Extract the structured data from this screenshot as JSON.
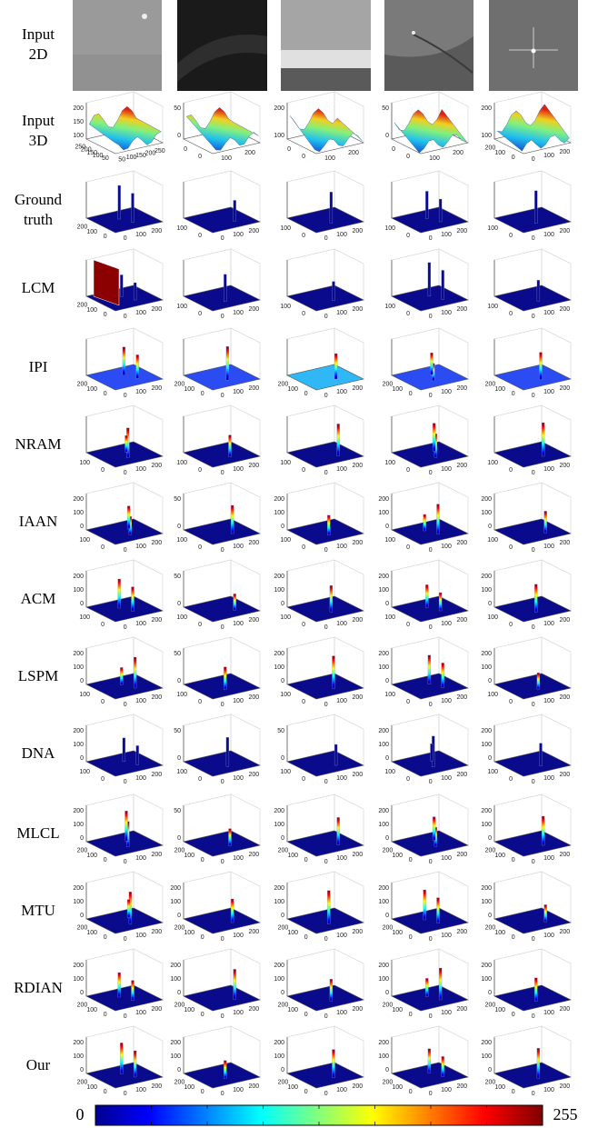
{
  "rows": [
    {
      "label": [
        "Input",
        "2D"
      ]
    },
    {
      "label": [
        "Input",
        "3D"
      ],
      "panels": [
        {
          "z": [
            "100",
            "150",
            "200"
          ],
          "f": [
            "250",
            "200",
            "150",
            "100",
            "50",
            "50",
            "100",
            "150",
            "200",
            "250"
          ]
        },
        {
          "z": [
            "0",
            "50"
          ],
          "f": [
            "0",
            "0",
            "100",
            "200"
          ]
        },
        {
          "z": [
            "100",
            "200"
          ],
          "f": [
            "0",
            "0",
            "100",
            "200"
          ]
        },
        {
          "z": [
            "0",
            "50"
          ],
          "f": [
            "0",
            "0",
            "100",
            "200"
          ]
        },
        {
          "z": [
            "100",
            "200"
          ],
          "f": [
            "200",
            "100",
            "0",
            "0",
            "100",
            "200"
          ]
        }
      ]
    },
    {
      "label": [
        "Ground",
        "truth"
      ],
      "panels": [
        {
          "z": [],
          "f": [
            "200",
            "100",
            "0",
            "0",
            "100",
            "200"
          ]
        },
        {
          "z": [],
          "f": [
            "100",
            "0",
            "0",
            "100",
            "200"
          ]
        },
        {
          "z": [],
          "f": [
            "100",
            "0",
            "0",
            "100",
            "200"
          ]
        },
        {
          "z": [],
          "f": [
            "100",
            "0",
            "0",
            "100",
            "200"
          ]
        },
        {
          "z": [],
          "f": [
            "100",
            "0",
            "0",
            "100",
            "200"
          ]
        }
      ]
    },
    {
      "label": [
        "LCM"
      ],
      "panels": [
        {
          "z": [],
          "f": [
            "200",
            "100",
            "0",
            "0",
            "100",
            "200"
          ]
        },
        {
          "z": [],
          "f": [
            "100",
            "0",
            "0",
            "100",
            "200"
          ]
        },
        {
          "z": [],
          "f": [
            "100",
            "0",
            "0",
            "100",
            "200"
          ]
        },
        {
          "z": [],
          "f": [
            "100",
            "0",
            "0",
            "100",
            "200"
          ]
        },
        {
          "z": [],
          "f": [
            "100",
            "0",
            "0",
            "100",
            "200"
          ]
        }
      ]
    },
    {
      "label": [
        "IPI"
      ],
      "panels": [
        {
          "z": [],
          "f": [
            "200",
            "100",
            "0",
            "0",
            "100",
            "200"
          ]
        },
        {
          "z": [],
          "f": [
            "200",
            "100",
            "0",
            "0",
            "100",
            "200"
          ]
        },
        {
          "z": [],
          "f": [
            "200",
            "100",
            "0",
            "0",
            "100",
            "200"
          ]
        },
        {
          "z": [],
          "f": [
            "200",
            "100",
            "0",
            "0",
            "100",
            "200"
          ]
        },
        {
          "z": [],
          "f": [
            "200",
            "100",
            "0",
            "0",
            "100",
            "200"
          ]
        }
      ]
    },
    {
      "label": [
        "NRAM"
      ],
      "panels": [
        {
          "z": [],
          "f": [
            "100",
            "0",
            "0",
            "100",
            "200"
          ]
        },
        {
          "z": [],
          "f": [
            "100",
            "0",
            "0",
            "100",
            "200"
          ]
        },
        {
          "z": [],
          "f": [
            "100",
            "0",
            "0",
            "100",
            "200"
          ]
        },
        {
          "z": [],
          "f": [
            "100",
            "0",
            "0",
            "100",
            "200"
          ]
        },
        {
          "z": [],
          "f": [
            "100",
            "0",
            "0",
            "100",
            "200"
          ]
        }
      ]
    },
    {
      "label": [
        "IAAN"
      ],
      "panels": [
        {
          "z": [
            "0",
            "100",
            "200"
          ],
          "f": [
            "100",
            "0",
            "0",
            "100",
            "200"
          ]
        },
        {
          "z": [
            "0",
            "50"
          ],
          "f": [
            "100",
            "0",
            "0",
            "100",
            "200"
          ]
        },
        {
          "z": [
            "0",
            "100",
            "200"
          ],
          "f": [
            "100",
            "0",
            "0",
            "100",
            "200"
          ]
        },
        {
          "z": [
            "0",
            "100",
            "200"
          ],
          "f": [
            "100",
            "0",
            "0",
            "100",
            "200"
          ]
        },
        {
          "z": [
            "0",
            "100",
            "200"
          ],
          "f": [
            "100",
            "0",
            "0",
            "100",
            "200"
          ]
        }
      ]
    },
    {
      "label": [
        "ACM"
      ],
      "panels": [
        {
          "z": [
            "0",
            "100",
            "200"
          ],
          "f": [
            "100",
            "0",
            "0",
            "100",
            "200"
          ]
        },
        {
          "z": [
            "0",
            "50"
          ],
          "f": [
            "100",
            "0",
            "0",
            "100",
            "200"
          ]
        },
        {
          "z": [
            "0",
            "100",
            "200"
          ],
          "f": [
            "100",
            "0",
            "0",
            "100",
            "200"
          ]
        },
        {
          "z": [
            "0",
            "100",
            "200"
          ],
          "f": [
            "100",
            "0",
            "0",
            "100",
            "200"
          ]
        },
        {
          "z": [
            "0",
            "100",
            "200"
          ],
          "f": [
            "100",
            "0",
            "0",
            "100",
            "200"
          ]
        }
      ]
    },
    {
      "label": [
        "LSPM"
      ],
      "panels": [
        {
          "z": [
            "0",
            "100",
            "200"
          ],
          "f": [
            "100",
            "0",
            "0",
            "100",
            "200"
          ]
        },
        {
          "z": [
            "0",
            "50"
          ],
          "f": [
            "100",
            "0",
            "0",
            "100",
            "200"
          ]
        },
        {
          "z": [
            "0",
            "100",
            "200"
          ],
          "f": [
            "100",
            "0",
            "0",
            "100",
            "200"
          ]
        },
        {
          "z": [
            "0",
            "100",
            "200"
          ],
          "f": [
            "100",
            "0",
            "0",
            "100",
            "200"
          ]
        },
        {
          "z": [
            "0",
            "100",
            "200"
          ],
          "f": [
            "100",
            "0",
            "0",
            "100",
            "200"
          ]
        }
      ]
    },
    {
      "label": [
        "DNA"
      ],
      "panels": [
        {
          "z": [
            "0",
            "100",
            "200"
          ],
          "f": [
            "100",
            "0",
            "0",
            "100",
            "200"
          ]
        },
        {
          "z": [
            "0",
            "50"
          ],
          "f": [
            "100",
            "0",
            "0",
            "100",
            "200"
          ]
        },
        {
          "z": [
            "0",
            "50"
          ],
          "f": [
            "100",
            "0",
            "0",
            "100",
            "200"
          ]
        },
        {
          "z": [
            "0",
            "100",
            "200"
          ],
          "f": [
            "100",
            "0",
            "0",
            "100",
            "200"
          ]
        },
        {
          "z": [
            "0",
            "100",
            "200"
          ],
          "f": [
            "100",
            "0",
            "0",
            "100",
            "200"
          ]
        }
      ]
    },
    {
      "label": [
        "MLCL"
      ],
      "panels": [
        {
          "z": [
            "0",
            "100",
            "200"
          ],
          "f": [
            "200",
            "100",
            "0",
            "0",
            "100",
            "200"
          ]
        },
        {
          "z": [
            "0",
            "50"
          ],
          "f": [
            "200",
            "100",
            "0",
            "0",
            "100",
            "200"
          ]
        },
        {
          "z": [
            "0",
            "100",
            "200"
          ],
          "f": [
            "200",
            "100",
            "0",
            "0",
            "100",
            "200"
          ]
        },
        {
          "z": [
            "0",
            "100",
            "200"
          ],
          "f": [
            "200",
            "100",
            "0",
            "0",
            "100",
            "200"
          ]
        },
        {
          "z": [
            "0",
            "100",
            "200"
          ],
          "f": [
            "200",
            "100",
            "0",
            "0",
            "100",
            "200"
          ]
        }
      ]
    },
    {
      "label": [
        "MTU"
      ],
      "panels": [
        {
          "z": [
            "0",
            "100",
            "200"
          ],
          "f": [
            "200",
            "100",
            "0",
            "0",
            "100",
            "200"
          ]
        },
        {
          "z": [
            "0",
            "100",
            "200"
          ],
          "f": [
            "200",
            "100",
            "0",
            "0",
            "100",
            "200"
          ]
        },
        {
          "z": [
            "0",
            "100",
            "200"
          ],
          "f": [
            "200",
            "100",
            "0",
            "0",
            "100",
            "200"
          ]
        },
        {
          "z": [
            "0",
            "100",
            "200"
          ],
          "f": [
            "200",
            "100",
            "0",
            "0",
            "100",
            "200"
          ]
        },
        {
          "z": [
            "0",
            "100",
            "200"
          ],
          "f": [
            "200",
            "100",
            "0",
            "0",
            "100",
            "200"
          ]
        }
      ]
    },
    {
      "label": [
        "RDIAN"
      ],
      "panels": [
        {
          "z": [
            "0",
            "100",
            "200"
          ],
          "f": [
            "200",
            "100",
            "0",
            "0",
            "100",
            "200"
          ]
        },
        {
          "z": [
            "0",
            "100",
            "200"
          ],
          "f": [
            "200",
            "100",
            "0",
            "0",
            "100",
            "200"
          ]
        },
        {
          "z": [
            "0",
            "100",
            "200"
          ],
          "f": [
            "200",
            "100",
            "0",
            "0",
            "100",
            "200"
          ]
        },
        {
          "z": [
            "0",
            "100",
            "200"
          ],
          "f": [
            "200",
            "100",
            "0",
            "0",
            "100",
            "200"
          ]
        },
        {
          "z": [
            "0",
            "100",
            "200"
          ],
          "f": [
            "200",
            "100",
            "0",
            "0",
            "100",
            "200"
          ]
        }
      ]
    },
    {
      "label": [
        "Our"
      ],
      "panels": [
        {
          "z": [
            "0",
            "100",
            "200"
          ],
          "f": [
            "200",
            "100",
            "0",
            "0",
            "100",
            "200"
          ]
        },
        {
          "z": [
            "0",
            "100",
            "200"
          ],
          "f": [
            "200",
            "100",
            "0",
            "0",
            "100",
            "200"
          ]
        },
        {
          "z": [
            "0",
            "100",
            "200"
          ],
          "f": [
            "200",
            "100",
            "0",
            "0",
            "100",
            "200"
          ]
        },
        {
          "z": [
            "0",
            "100",
            "200"
          ],
          "f": [
            "200",
            "100",
            "0",
            "0",
            "100",
            "200"
          ]
        },
        {
          "z": [
            "0",
            "100",
            "200"
          ],
          "f": [
            "200",
            "100",
            "0",
            "0",
            "100",
            "200"
          ]
        }
      ]
    }
  ],
  "colorbar": {
    "min": "0",
    "max": "255"
  }
}
